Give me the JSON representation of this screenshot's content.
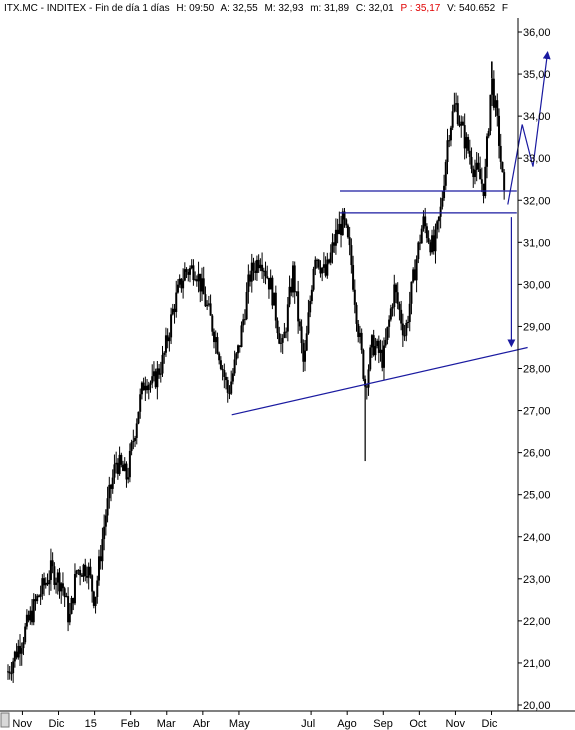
{
  "header": {
    "symbol": "ITX.MC - INDITEX - Fin de día 1 días",
    "high": "H: 09:50",
    "open": "A: 32,55",
    "max": "M: 32,93",
    "min": "m: 31,89",
    "close": "C: 32,01",
    "p_value": "P : 35,17",
    "volume": "V: 540.652",
    "trailing": "F"
  },
  "colors": {
    "candles": "#000000",
    "annotations": "#1a1aa0",
    "p_value": "#e00000",
    "axis": "#000000"
  },
  "chart_data": {
    "type": "candlestick",
    "title": "",
    "xlabel": "",
    "ylabel": "",
    "ylim": [
      20,
      36
    ],
    "y_ticks": [
      "20,00",
      "21,00",
      "22,00",
      "23,00",
      "24,00",
      "25,00",
      "26,00",
      "27,00",
      "28,00",
      "29,00",
      "30,00",
      "31,00",
      "32,00",
      "33,00",
      "34,00",
      "35,00",
      "36,00"
    ],
    "x_tick_labels": [
      "Nov",
      "Dic",
      "15",
      "Feb",
      "Mar",
      "Abr",
      "May",
      "Jul",
      "Ago",
      "Sep",
      "Oct",
      "Nov",
      "Dic"
    ],
    "x_tick_positions": [
      1,
      2,
      3,
      4,
      5,
      6,
      7,
      9,
      10,
      11,
      12,
      13,
      14
    ],
    "x_range": [
      0.6,
      14.9
    ],
    "price_path": [
      [
        0.6,
        20.8
      ],
      [
        1.0,
        21.6
      ],
      [
        1.4,
        22.5
      ],
      [
        1.8,
        23.2
      ],
      [
        2.1,
        22.9
      ],
      [
        2.3,
        22.0
      ],
      [
        2.5,
        23.2
      ],
      [
        2.8,
        23.3
      ],
      [
        3.0,
        22.5
      ],
      [
        3.3,
        24.5
      ],
      [
        3.6,
        25.8
      ],
      [
        3.9,
        25.4
      ],
      [
        4.2,
        27.0
      ],
      [
        4.4,
        27.8
      ],
      [
        4.6,
        27.6
      ],
      [
        4.9,
        28.2
      ],
      [
        5.2,
        29.5
      ],
      [
        5.5,
        30.3
      ],
      [
        5.8,
        30.4
      ],
      [
        6.1,
        29.5
      ],
      [
        6.4,
        28.6
      ],
      [
        6.7,
        27.4
      ],
      [
        7.0,
        28.5
      ],
      [
        7.3,
        30.2
      ],
      [
        7.6,
        30.7
      ],
      [
        7.9,
        29.9
      ],
      [
        8.2,
        28.4
      ],
      [
        8.5,
        30.3
      ],
      [
        8.8,
        28.0
      ],
      [
        9.1,
        30.8
      ],
      [
        9.4,
        30.2
      ],
      [
        9.7,
        31.2
      ],
      [
        9.9,
        31.5
      ],
      [
        10.1,
        30.6
      ],
      [
        10.3,
        29.0
      ],
      [
        10.5,
        27.6
      ],
      [
        10.7,
        28.6
      ],
      [
        11.0,
        28.2
      ],
      [
        11.3,
        29.9
      ],
      [
        11.6,
        28.8
      ],
      [
        11.9,
        30.5
      ],
      [
        12.1,
        31.5
      ],
      [
        12.4,
        30.8
      ],
      [
        12.6,
        31.8
      ],
      [
        12.8,
        33.6
      ],
      [
        13.0,
        34.3
      ],
      [
        13.2,
        33.6
      ],
      [
        13.5,
        32.8
      ],
      [
        13.8,
        32.3
      ],
      [
        14.0,
        34.9
      ],
      [
        14.2,
        33.5
      ],
      [
        14.35,
        32.0
      ]
    ],
    "extreme_points": [
      [
        10.5,
        25.8
      ],
      [
        14.0,
        35.3
      ],
      [
        0.6,
        20.6
      ]
    ],
    "annotations": {
      "support_trendline": [
        [
          6.8,
          26.9
        ],
        [
          15.0,
          28.5
        ]
      ],
      "resistance_line_upper": [
        [
          9.8,
          32.22
        ],
        [
          14.7,
          32.22
        ]
      ],
      "resistance_line_lower": [
        [
          9.8,
          31.7
        ],
        [
          14.7,
          31.7
        ]
      ],
      "down_arrow": [
        [
          14.55,
          31.6
        ],
        [
          14.55,
          28.55
        ]
      ],
      "zigzag_up_arrow": [
        [
          14.45,
          31.9
        ],
        [
          14.85,
          33.8
        ],
        [
          15.15,
          32.8
        ],
        [
          15.55,
          35.5
        ]
      ]
    }
  }
}
